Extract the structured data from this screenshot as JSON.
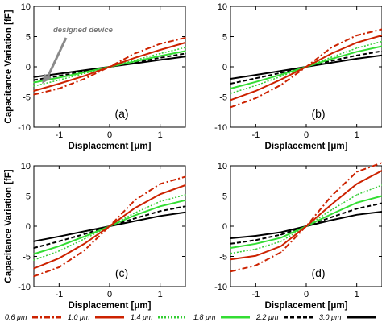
{
  "chart_data": [
    {
      "type": "line",
      "panel_label": "(a)",
      "xlabel": "Displacement [μm]",
      "ylabel": "Capacitance Variation [fF]",
      "xlim": [
        -1.5,
        1.5
      ],
      "ylim": [
        -10,
        10
      ],
      "xticks": [
        -1,
        0,
        1
      ],
      "yticks": [
        -10,
        -5,
        0,
        5,
        10
      ],
      "grid": false,
      "annotation": "designed device",
      "x": [
        -1.5,
        -1.0,
        -0.5,
        0,
        0.5,
        1.0,
        1.5
      ],
      "series": [
        {
          "name": "0.6 μm",
          "values": [
            -4.6,
            -3.6,
            -2.0,
            0,
            2.2,
            3.8,
            4.8
          ]
        },
        {
          "name": "1.0 μm",
          "values": [
            -4.0,
            -2.8,
            -1.5,
            0,
            1.5,
            2.8,
            4.0
          ]
        },
        {
          "name": "1.4 μm",
          "values": [
            -3.2,
            -2.2,
            -1.1,
            0,
            1.1,
            2.2,
            3.2
          ]
        },
        {
          "name": "1.8 μm",
          "values": [
            -2.6,
            -1.8,
            -0.9,
            0,
            0.9,
            1.8,
            2.6
          ]
        },
        {
          "name": "2.2 μm",
          "values": [
            -2.2,
            -1.5,
            -0.75,
            0,
            0.75,
            1.5,
            2.2
          ]
        },
        {
          "name": "3.0 μm",
          "values": [
            -1.7,
            -1.15,
            -0.57,
            0,
            0.57,
            1.15,
            1.7
          ]
        }
      ]
    },
    {
      "type": "line",
      "panel_label": "(b)",
      "xlabel": "Displacement [μm]",
      "ylabel": "",
      "xlim": [
        -1.5,
        1.5
      ],
      "ylim": [
        -10,
        10
      ],
      "xticks": [
        -1,
        0,
        1
      ],
      "yticks": [
        -10,
        -5,
        0,
        5,
        10
      ],
      "grid": false,
      "x": [
        -1.5,
        -1.0,
        -0.5,
        0,
        0.5,
        1.0,
        1.5
      ],
      "series": [
        {
          "name": "0.6 μm",
          "values": [
            -6.7,
            -5.2,
            -3.0,
            0,
            3.2,
            5.2,
            6.2
          ]
        },
        {
          "name": "1.0 μm",
          "values": [
            -5.5,
            -4.0,
            -2.1,
            0,
            2.2,
            4.0,
            5.2
          ]
        },
        {
          "name": "1.4 μm",
          "values": [
            -4.4,
            -3.1,
            -1.6,
            0,
            1.6,
            3.1,
            4.2
          ]
        },
        {
          "name": "1.8 μm",
          "values": [
            -3.6,
            -2.5,
            -1.3,
            0,
            1.3,
            2.5,
            3.4
          ]
        },
        {
          "name": "2.2 μm",
          "values": [
            -2.8,
            -1.9,
            -1.0,
            0,
            1.0,
            1.9,
            2.6
          ]
        },
        {
          "name": "3.0 μm",
          "values": [
            -2.0,
            -1.35,
            -0.68,
            0,
            0.68,
            1.35,
            1.9
          ]
        }
      ]
    },
    {
      "type": "line",
      "panel_label": "(c)",
      "xlabel": "Displacement [μm]",
      "ylabel": "Capacitance Variation [fF]",
      "xlim": [
        -1.5,
        1.5
      ],
      "ylim": [
        -10,
        10
      ],
      "xticks": [
        -1,
        0,
        1
      ],
      "yticks": [
        -10,
        -5,
        0,
        5,
        10
      ],
      "grid": false,
      "x": [
        -1.5,
        -1.0,
        -0.5,
        0,
        0.5,
        1.0,
        1.5
      ],
      "series": [
        {
          "name": "0.6 μm",
          "values": [
            -8.3,
            -6.8,
            -4.0,
            0,
            4.3,
            7.0,
            8.2
          ]
        },
        {
          "name": "1.0 μm",
          "values": [
            -7.0,
            -5.3,
            -2.9,
            0,
            3.0,
            5.3,
            6.8
          ]
        },
        {
          "name": "1.4 μm",
          "values": [
            -5.6,
            -4.1,
            -2.1,
            0,
            2.2,
            4.1,
            5.2
          ]
        },
        {
          "name": "1.8 μm",
          "values": [
            -4.6,
            -3.3,
            -1.7,
            0,
            1.8,
            3.3,
            4.3
          ]
        },
        {
          "name": "2.2 μm",
          "values": [
            -3.6,
            -2.5,
            -1.3,
            0,
            1.3,
            2.5,
            3.3
          ]
        },
        {
          "name": "3.0 μm",
          "values": [
            -2.5,
            -1.7,
            -0.85,
            0,
            0.85,
            1.7,
            2.3
          ]
        }
      ]
    },
    {
      "type": "line",
      "panel_label": "(d)",
      "xlabel": "Displacement [μm]",
      "ylabel": "",
      "xlim": [
        -1.5,
        1.5
      ],
      "ylim": [
        -10,
        10
      ],
      "xticks": [
        -1,
        0,
        1
      ],
      "yticks": [
        -10,
        -5,
        0,
        5,
        10
      ],
      "grid": false,
      "x": [
        -1.5,
        -1.0,
        -0.5,
        0,
        0.5,
        1.0,
        1.5
      ],
      "series": [
        {
          "name": "0.6 μm",
          "values": [
            -7.5,
            -6.5,
            -4.3,
            0,
            5.0,
            9.0,
            10.5
          ]
        },
        {
          "name": "1.0 μm",
          "values": [
            -5.5,
            -4.9,
            -3.3,
            0,
            3.6,
            7.0,
            9.2
          ]
        },
        {
          "name": "1.4 μm",
          "values": [
            -4.5,
            -3.8,
            -2.5,
            0,
            2.7,
            5.2,
            6.8
          ]
        },
        {
          "name": "1.8 μm",
          "values": [
            -3.6,
            -2.9,
            -1.9,
            0,
            2.0,
            3.9,
            5.0
          ]
        },
        {
          "name": "2.2 μm",
          "values": [
            -2.9,
            -2.3,
            -1.4,
            0,
            1.5,
            2.9,
            3.8
          ]
        },
        {
          "name": "3.0 μm",
          "values": [
            -2.0,
            -1.6,
            -1.0,
            0,
            1.0,
            1.9,
            2.4
          ]
        }
      ]
    }
  ],
  "legend": [
    {
      "label": "0.6 μm",
      "color": "#cc2200",
      "style": "dash-dot"
    },
    {
      "label": "1.0 μm",
      "color": "#cc2200",
      "style": "solid"
    },
    {
      "label": "1.4 μm",
      "color": "#33cc33",
      "style": "dotted"
    },
    {
      "label": "1.8 μm",
      "color": "#33dd33",
      "style": "solid"
    },
    {
      "label": "2.2 μm",
      "color": "#000000",
      "style": "dashed"
    },
    {
      "label": "3.0 μm",
      "color": "#000000",
      "style": "solid"
    }
  ]
}
